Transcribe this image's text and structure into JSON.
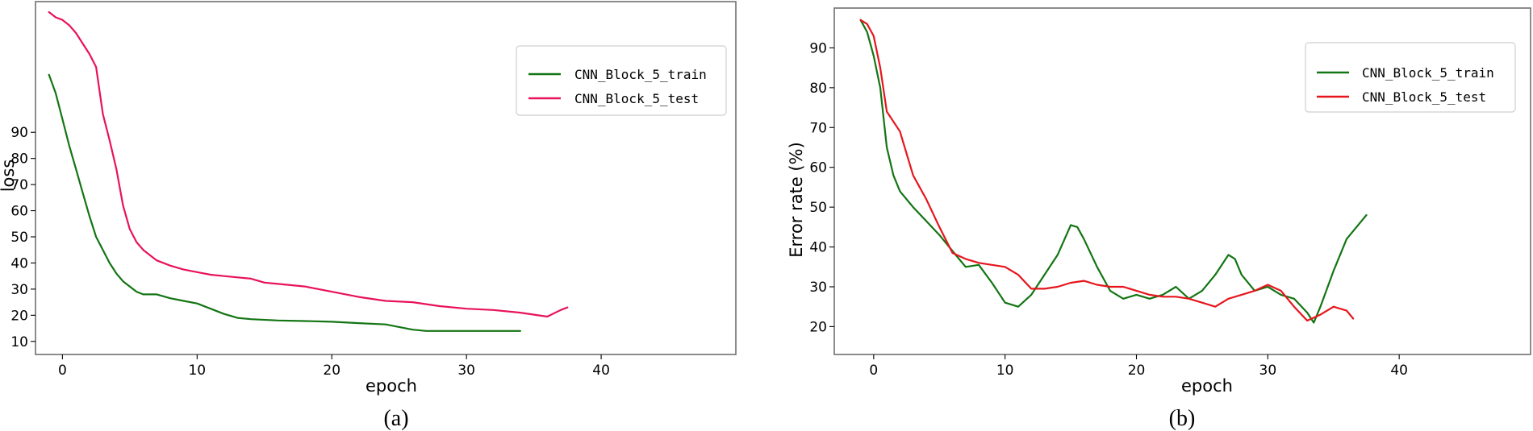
{
  "chart_data": [
    {
      "type": "line",
      "caption": "(a)",
      "xlabel": "epoch",
      "ylabel": "loss",
      "xlim": [
        -2,
        50
      ],
      "ylim": [
        5,
        140
      ],
      "xticks": [
        0,
        10,
        20,
        30,
        40
      ],
      "yticks": [
        10,
        20,
        30,
        40,
        50,
        60,
        70,
        80,
        90
      ],
      "legend_position": "upper-right",
      "grid": false,
      "series": [
        {
          "name": "CNN_Block_5_train",
          "color": "#137513",
          "x": [
            -1,
            -0.5,
            0,
            0.5,
            1,
            1.5,
            2,
            2.5,
            3,
            3.5,
            4,
            4.5,
            5,
            5.5,
            6,
            7,
            8,
            9,
            10,
            11,
            12,
            13,
            14,
            16,
            18,
            20,
            22,
            24,
            25,
            26,
            27,
            28,
            30,
            32,
            34
          ],
          "y": [
            112,
            105,
            95,
            85,
            76,
            67,
            58,
            50,
            45,
            40,
            36,
            33,
            31,
            29,
            28,
            28,
            26.5,
            25.5,
            24.5,
            22.5,
            20.5,
            19,
            18.5,
            18,
            17.8,
            17.5,
            17,
            16.5,
            15.5,
            14.5,
            14,
            14,
            14,
            14,
            14
          ]
        },
        {
          "name": "CNN_Block_5_test",
          "color": "#e8125a",
          "x": [
            -1,
            -0.5,
            0,
            0.5,
            1,
            1.5,
            2,
            2.5,
            3,
            3.5,
            4,
            4.5,
            5,
            5.5,
            6,
            7,
            8,
            9,
            10,
            11,
            12,
            13,
            14,
            15,
            16,
            18,
            20,
            22,
            24,
            26,
            28,
            30,
            32,
            34,
            36,
            37,
            37.5
          ],
          "y": [
            136,
            134,
            133,
            131,
            128,
            124,
            120,
            115,
            97,
            87,
            76,
            62,
            53,
            48,
            45,
            41,
            39,
            37.5,
            36.5,
            35.5,
            35,
            34.5,
            34,
            32.5,
            32,
            31,
            29,
            27,
            25.5,
            25,
            23.5,
            22.5,
            22,
            21,
            19.5,
            22,
            23
          ]
        }
      ]
    },
    {
      "type": "line",
      "caption": "(b)",
      "xlabel": "epoch",
      "ylabel": "Error rate (%)",
      "xlim": [
        -3,
        50
      ],
      "ylim": [
        13,
        100
      ],
      "xticks": [
        0,
        10,
        20,
        30,
        40
      ],
      "yticks": [
        20,
        30,
        40,
        50,
        60,
        70,
        80,
        90
      ],
      "legend_position": "upper-right",
      "grid": false,
      "series": [
        {
          "name": "CNN_Block_5_train",
          "color": "#137513",
          "x": [
            -1,
            -0.5,
            0,
            0.5,
            1,
            1.5,
            2,
            3,
            4,
            5,
            6,
            7,
            8,
            9,
            10,
            11,
            12,
            13,
            14,
            15,
            15.5,
            16,
            17,
            18,
            19,
            20,
            21,
            22,
            23,
            24,
            25,
            26,
            27,
            27.5,
            28,
            29,
            30,
            31,
            32,
            33,
            33.5,
            34,
            35,
            36,
            37,
            37.5
          ],
          "y": [
            97,
            94,
            88,
            80,
            65,
            58,
            54,
            50,
            46.5,
            43,
            39,
            35,
            35.5,
            31,
            26,
            25,
            28,
            33,
            38,
            45.5,
            45,
            42,
            35,
            29,
            27,
            28,
            27,
            28,
            30,
            27,
            29,
            33,
            38,
            37,
            33,
            29,
            30,
            28,
            27,
            23.5,
            21,
            25,
            34,
            42,
            46,
            48
          ]
        },
        {
          "name": "CNN_Block_5_test",
          "color": "#e6151d",
          "x": [
            -1,
            -0.5,
            0,
            0.5,
            1,
            2,
            3,
            4,
            5,
            6,
            7,
            8,
            9,
            10,
            11,
            12,
            13,
            14,
            15,
            16,
            17,
            18,
            19,
            20,
            21,
            22,
            23,
            24,
            25,
            26,
            27,
            28,
            29,
            30,
            31,
            32,
            33,
            34,
            35,
            36,
            36.5
          ],
          "y": [
            97,
            96,
            93,
            85,
            74,
            69,
            58,
            52,
            45,
            38.5,
            37,
            36,
            35.5,
            35,
            33,
            29.5,
            29.5,
            30,
            31,
            31.5,
            30.5,
            30,
            30,
            29,
            28,
            27.5,
            27.5,
            27,
            26,
            25,
            27,
            28,
            29,
            30.5,
            29,
            25,
            21.5,
            23,
            25,
            24,
            22
          ]
        }
      ]
    }
  ]
}
